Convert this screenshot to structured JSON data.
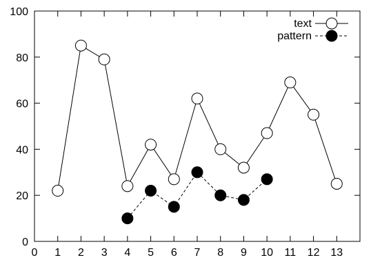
{
  "chart_data": {
    "type": "line",
    "title": "",
    "xlabel": "",
    "ylabel": "",
    "xlim": [
      0,
      14
    ],
    "ylim": [
      0,
      100
    ],
    "x_ticks": [
      0,
      1,
      2,
      3,
      4,
      5,
      6,
      7,
      8,
      9,
      10,
      11,
      12,
      13
    ],
    "y_ticks": [
      0,
      20,
      40,
      60,
      80,
      100
    ],
    "grid": false,
    "legend_position": "top-right",
    "series": [
      {
        "name": "text",
        "marker": "open-circle",
        "line_style": "solid",
        "color": "#000000",
        "x": [
          1,
          2,
          3,
          4,
          5,
          6,
          7,
          8,
          9,
          10,
          11,
          12,
          13
        ],
        "y": [
          22,
          85,
          79,
          24,
          42,
          27,
          62,
          40,
          32,
          47,
          69,
          55,
          25
        ]
      },
      {
        "name": "pattern",
        "marker": "filled-circle",
        "line_style": "dashed",
        "color": "#000000",
        "x": [
          4,
          5,
          6,
          7,
          8,
          9,
          10
        ],
        "y": [
          10,
          22,
          15,
          30,
          20,
          18,
          27
        ]
      }
    ]
  }
}
